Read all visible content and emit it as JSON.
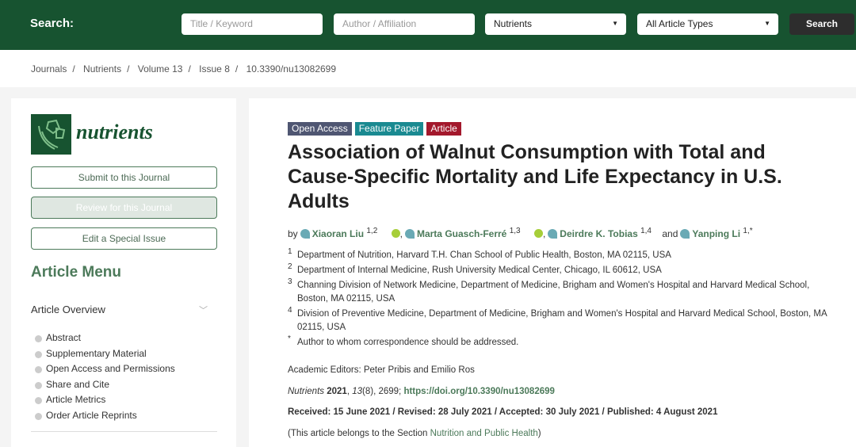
{
  "header": {
    "search_label": "Search:",
    "title_placeholder": "Title / Keyword",
    "author_placeholder": "Author / Affiliation",
    "journal_select": "Nutrients",
    "type_select": "All Article Types",
    "search_button": "Search"
  },
  "breadcrumb": [
    "Journals",
    "Nutrients",
    "Volume 13",
    "Issue 8",
    "10.3390/nu13082699"
  ],
  "sidebar": {
    "logo_text": "nutrients",
    "submit": "Submit to this Journal",
    "review": "Review for this Journal",
    "edit": "Edit a Special Issue",
    "menu_title": "Article Menu",
    "overview": "Article Overview",
    "items": [
      "Abstract",
      "Supplementary Material",
      "Open Access and Permissions",
      "Share and Cite",
      "Article Metrics",
      "Order Article Reprints"
    ]
  },
  "article": {
    "tags": [
      {
        "label": "Open Access",
        "color": "#4f5672"
      },
      {
        "label": "Feature Paper",
        "color": "#1a8a91"
      },
      {
        "label": "Article",
        "color": "#a3182c"
      }
    ],
    "title": "Association of Walnut Consumption with Total and Cause-Specific Mortality and Life Expectancy in U.S. Adults",
    "by": "by",
    "and": "and",
    "authors": [
      {
        "name": "Xiaoran Liu",
        "sup": "1,2"
      },
      {
        "name": "Marta Guasch-Ferré",
        "sup": "1,3"
      },
      {
        "name": "Deirdre K. Tobias",
        "sup": "1,4"
      },
      {
        "name": "Yanping Li",
        "sup": "1,*"
      }
    ],
    "affiliations": [
      {
        "n": "1",
        "text": "Department of Nutrition, Harvard T.H. Chan School of Public Health, Boston, MA 02115, USA"
      },
      {
        "n": "2",
        "text": "Department of Internal Medicine, Rush University Medical Center, Chicago, IL 60612, USA"
      },
      {
        "n": "3",
        "text": "Channing Division of Network Medicine, Department of Medicine, Brigham and Women's Hospital and Harvard Medical School, Boston, MA 02115, USA"
      },
      {
        "n": "4",
        "text": "Division of Preventive Medicine, Department of Medicine, Brigham and Women's Hospital and Harvard Medical School, Boston, MA 02115, USA"
      },
      {
        "n": "*",
        "text": "Author to whom correspondence should be addressed."
      }
    ],
    "editors": "Academic Editors: Peter Pribis and Emilio Ros",
    "journal": "Nutrients",
    "year": "2021",
    "volume": "13",
    "issue_page": "(8), 2699; ",
    "doi": "https://doi.org/10.3390/nu13082699",
    "dates": "Received: 15 June 2021 / Revised: 28 July 2021 / Accepted: 30 July 2021 / Published: 4 August 2021",
    "section_prefix": "(This article belongs to the Section ",
    "section": "Nutrition and Public Health",
    "section_suffix": ")"
  }
}
